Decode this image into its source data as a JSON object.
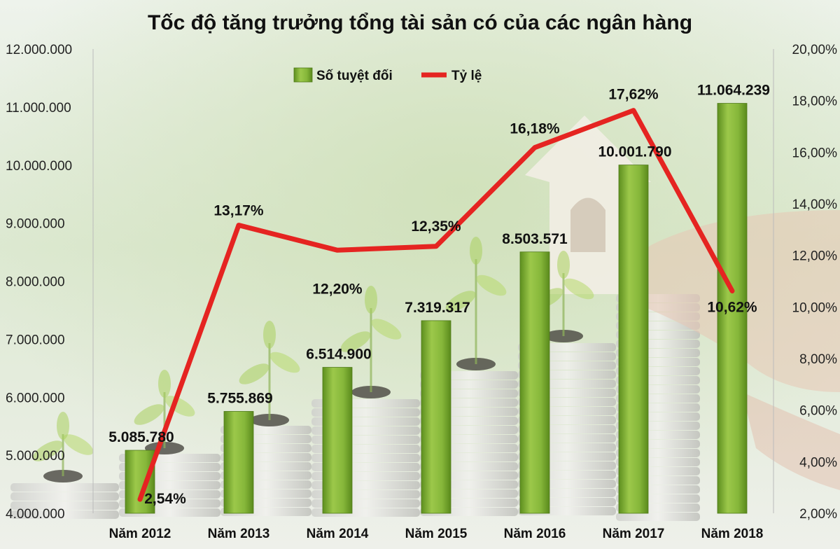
{
  "chart_data": {
    "type": "bar",
    "title": "Tốc độ tăng trưởng tổng tài sản có của các ngân hàng",
    "categories": [
      "Năm 2012",
      "Năm 2013",
      "Năm 2014",
      "Năm 2015",
      "Năm 2016",
      "Năm 2017",
      "Năm 2018"
    ],
    "series": [
      {
        "name": "Số tuyệt đối",
        "type": "bar",
        "axis": "left",
        "values": [
          5085780,
          5755869,
          6514900,
          7319317,
          8503571,
          10001790,
          11064239
        ],
        "labels": [
          "5.085.780",
          "5.755.869",
          "6.514.900",
          "7.319.317",
          "8.503.571",
          "10.001.790",
          "11.064.239"
        ],
        "color": "#7aab2e"
      },
      {
        "name": "Tỷ lệ",
        "type": "line",
        "axis": "right",
        "values": [
          2.54,
          13.17,
          12.2,
          12.35,
          16.18,
          17.62,
          10.62
        ],
        "labels": [
          "2,54%",
          "13,17%",
          "12,20%",
          "12,35%",
          "16,18%",
          "17,62%",
          "10,62%"
        ],
        "color": "#e52421"
      }
    ],
    "y_left": {
      "range": [
        4000000,
        12000000
      ],
      "ticks": [
        "4.000.000",
        "5.000.000",
        "6.000.000",
        "7.000.000",
        "8.000.000",
        "9.000.000",
        "10.000.000",
        "11.000.000",
        "12.000.000"
      ]
    },
    "y_right": {
      "range": [
        2,
        20
      ],
      "ticks": [
        "2,00%",
        "4,00%",
        "6,00%",
        "8,00%",
        "10,00%",
        "12,00%",
        "14,00%",
        "16,00%",
        "18,00%",
        "20,00%"
      ]
    },
    "legend": {
      "position": "top-left"
    },
    "grid": false
  }
}
